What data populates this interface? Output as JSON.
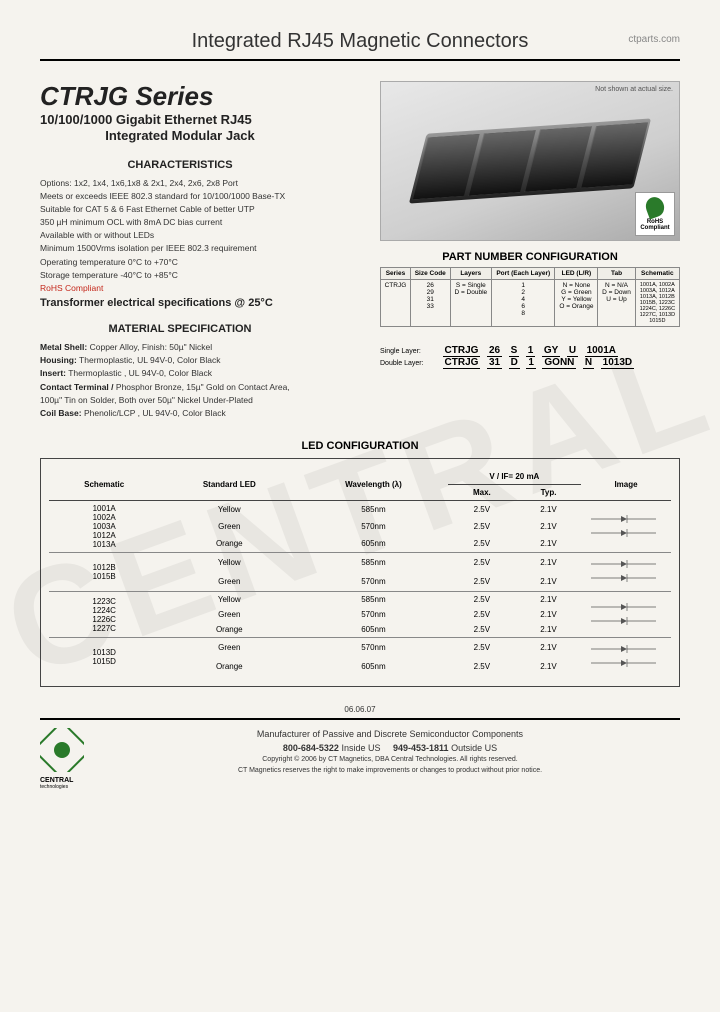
{
  "header": {
    "title": "Integrated RJ45 Magnetic Connectors",
    "site": "ctparts.com"
  },
  "series": {
    "title": "CTRJG Series",
    "sub1": "10/100/1000 Gigabit Ethernet RJ45",
    "sub2": "Integrated Modular Jack"
  },
  "product_image": {
    "note": "Not shown at actual size.",
    "rohs": "RoHS Compliant"
  },
  "characteristics": {
    "heading": "CHARACTERISTICS",
    "items": [
      "Options: 1x2, 1x4, 1x6,1x8 & 2x1, 2x4, 2x6, 2x8 Port",
      "Meets or exceeds IEEE 802.3 standard for 10/100/1000 Base-TX",
      "Suitable for CAT 5 & 6 Fast Ethernet Cable of better UTP",
      "350 µH minimum OCL with 8mA DC bias current",
      "Available with or without LEDs",
      "Minimum 1500Vrms isolation per IEEE 802.3 requirement",
      "Operating temperature 0°C to +70°C",
      "Storage temperature -40°C to +85°C"
    ],
    "rohs": "RoHS Compliant",
    "transformer": "Transformer electrical specifications @ 25°C"
  },
  "materials": {
    "heading": "MATERIAL SPECIFICATION",
    "items": [
      {
        "label": "Metal Shell:",
        "text": "Copper Alloy, Finish: 50µ\" Nickel"
      },
      {
        "label": "Housing:",
        "text": "Thermoplastic, UL 94V-0, Color Black"
      },
      {
        "label": "Insert:",
        "text": "Thermoplastic , UL 94V-0, Color Black"
      },
      {
        "label": "Contact Terminal /",
        "text": "Phosphor Bronze, 15µ\" Gold on Contact Area,"
      },
      {
        "label": "",
        "text": "100µ\" Tin on Solder, Both over 50µ\" Nickel Under-Plated"
      },
      {
        "label": "Coil Base:",
        "text": "Phenolic/LCP , UL 94V-0, Color Black"
      }
    ]
  },
  "part_number": {
    "heading": "PART NUMBER CONFIGURATION",
    "headers": [
      "Series",
      "Size Code",
      "Layers",
      "Port (Each Layer)",
      "LED (L/R)",
      "Tab",
      "Schematic"
    ],
    "row": {
      "series": "CTRJG",
      "size": "26\n29\n31\n33",
      "layers": "S = Single\nD = Double",
      "port": "1\n2\n4\n6\n8",
      "led": "N = None\nG = Green\nY = Yellow\nO = Orange",
      "tab": "N = N/A\nD = Down\nU = Up",
      "schematic": "1001A, 1002A\n1003A, 1012A\n1013A, 1012B\n1015B, 1223C\n1224C, 1226C\n1227C, 1013D\n1015D"
    },
    "ex_labels": {
      "single": "Single Layer:",
      "double": "Double Layer:"
    },
    "ex1": [
      "CTRJG",
      "26",
      "S",
      "1",
      "GY",
      "U",
      "1001A"
    ],
    "ex2": [
      "CTRJG",
      "31",
      "D",
      "1",
      "GONN",
      "N",
      "1013D"
    ]
  },
  "led": {
    "heading": "LED CONFIGURATION",
    "headers": {
      "schematic": "Schematic",
      "std_led": "Standard LED",
      "wavelength": "Wavelength (λ)",
      "vif": "V / IF= 20 mA",
      "max": "Max.",
      "typ": "Typ.",
      "image": "Image"
    },
    "groups": [
      {
        "schematics": [
          "1001A",
          "1002A",
          "1003A",
          "1012A",
          "1013A"
        ],
        "rows": [
          {
            "led": "Yellow",
            "wl": "585nm",
            "max": "2.5V",
            "typ": "2.1V"
          },
          {
            "led": "Green",
            "wl": "570nm",
            "max": "2.5V",
            "typ": "2.1V"
          },
          {
            "led": "Orange",
            "wl": "605nm",
            "max": "2.5V",
            "typ": "2.1V"
          }
        ]
      },
      {
        "schematics": [
          "1012B",
          "1015B"
        ],
        "rows": [
          {
            "led": "Yellow",
            "wl": "585nm",
            "max": "2.5V",
            "typ": "2.1V"
          },
          {
            "led": "Green",
            "wl": "570nm",
            "max": "2.5V",
            "typ": "2.1V"
          }
        ]
      },
      {
        "schematics": [
          "1223C",
          "1224C",
          "1226C",
          "1227C"
        ],
        "rows": [
          {
            "led": "Yellow",
            "wl": "585nm",
            "max": "2.5V",
            "typ": "2.1V"
          },
          {
            "led": "Green",
            "wl": "570nm",
            "max": "2.5V",
            "typ": "2.1V"
          },
          {
            "led": "Orange",
            "wl": "605nm",
            "max": "2.5V",
            "typ": "2.1V"
          }
        ]
      },
      {
        "schematics": [
          "1013D",
          "1015D"
        ],
        "rows": [
          {
            "led": "Green",
            "wl": "570nm",
            "max": "2.5V",
            "typ": "2.1V"
          },
          {
            "led": "Orange",
            "wl": "605nm",
            "max": "2.5V",
            "typ": "2.1V"
          }
        ]
      }
    ]
  },
  "date": "06.06.07",
  "footer": {
    "line1": "Manufacturer of Passive and Discrete Semiconductor Components",
    "phone1_num": "800-684-5322",
    "phone1_loc": "Inside US",
    "phone2_num": "949-453-1811",
    "phone2_loc": "Outside US",
    "line3": "Copyright © 2006 by CT Magnetics, DBA Central Technologies. All rights reserved.",
    "line4": "CT Magnetics reserves the right to make improvements or changes to product without prior notice.",
    "brand": "CENTRAL",
    "brand_sub": "technologies"
  },
  "colors": {
    "bg": "#f5f3ee",
    "rule": "#000000",
    "text": "#333333",
    "rohs_red": "#c4271b"
  }
}
